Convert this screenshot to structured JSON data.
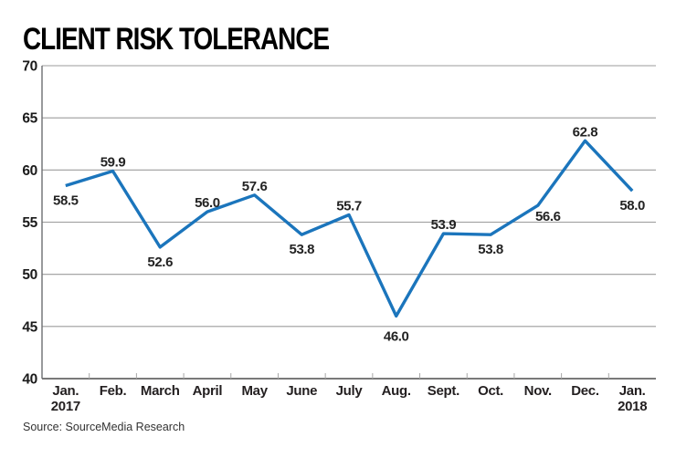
{
  "header": {
    "title": "CLIENT RISK TOLERANCE"
  },
  "footer": {
    "source": "Source: SourceMedia Research"
  },
  "colors": {
    "line": "#1B75BC",
    "grid": "#9b9b9b",
    "axis_bottom": "#4d4d4d",
    "axis_left": "#6d6e71",
    "tick": "#a7a7a7",
    "text": "#231f20"
  },
  "chart_data": {
    "type": "line",
    "title": "CLIENT RISK TOLERANCE",
    "categories": [
      [
        "Jan.",
        "2017"
      ],
      [
        "Feb."
      ],
      [
        "March"
      ],
      [
        "April"
      ],
      [
        "May"
      ],
      [
        "June"
      ],
      [
        "July"
      ],
      [
        "Aug."
      ],
      [
        "Sept."
      ],
      [
        "Oct."
      ],
      [
        "Nov."
      ],
      [
        "Dec."
      ],
      [
        "Jan.",
        "2018"
      ]
    ],
    "values": [
      58.5,
      59.9,
      52.6,
      56.0,
      57.6,
      53.8,
      55.7,
      46.0,
      53.9,
      53.8,
      56.6,
      62.8,
      58.0
    ],
    "point_labels": [
      "58.5",
      "59.9",
      "52.6",
      "56.0",
      "57.6",
      "53.8",
      "55.7",
      "46.0",
      "53.9",
      "53.8",
      "56.6",
      "62.8",
      "58.0"
    ],
    "label_side": [
      "below",
      "above",
      "below",
      "above",
      "above",
      "below",
      "above",
      "below-far",
      "above",
      "below",
      "below-right",
      "above",
      "below"
    ],
    "xlabel": "",
    "ylabel": "",
    "ylim": [
      40,
      70
    ],
    "yticks": [
      40,
      45,
      50,
      55,
      60,
      65,
      70
    ],
    "grid": "horizontal-only",
    "legend": "none",
    "source": "Source: SourceMedia Research"
  }
}
